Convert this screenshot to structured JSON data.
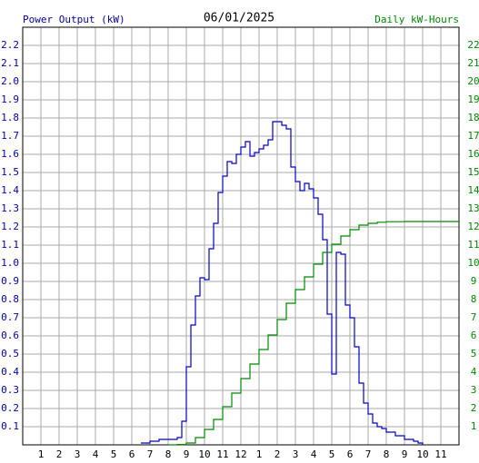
{
  "chart_data": {
    "type": "step",
    "title": "06/01/2025",
    "y_label": "Power Output (kW)",
    "y2_label": "Daily kW-Hours",
    "xlim": [
      0,
      24
    ],
    "xticks": [
      1,
      2,
      3,
      4,
      5,
      6,
      7,
      8,
      9,
      10,
      11,
      {
        "value": 12,
        "label": "12"
      },
      {
        "value": 13,
        "label": "1"
      },
      {
        "value": 14,
        "label": "2"
      },
      {
        "value": 15,
        "label": "3"
      },
      {
        "value": 16,
        "label": "4"
      },
      {
        "value": 17,
        "label": "5"
      },
      {
        "value": 18,
        "label": "6"
      },
      {
        "value": 19,
        "label": "7"
      },
      {
        "value": 20,
        "label": "8"
      },
      {
        "value": 21,
        "label": "9"
      },
      {
        "value": 22,
        "label": "10"
      },
      {
        "value": 23,
        "label": "11"
      }
    ],
    "ylim": [
      0,
      2.3
    ],
    "yticks": [
      0.1,
      0.2,
      0.3,
      0.4,
      0.5,
      0.6,
      0.7,
      0.8,
      0.9,
      {
        "value": 1,
        "label": "1.0"
      },
      1.1,
      1.2,
      1.3,
      1.4,
      1.5,
      1.6,
      1.7,
      1.8,
      1.9,
      {
        "value": 2,
        "label": "2.0"
      },
      2.1,
      2.2
    ],
    "y2lim": [
      0,
      23
    ],
    "y2ticks": [
      1,
      2,
      3,
      4,
      5,
      6,
      7,
      8,
      9,
      10,
      11,
      12,
      13,
      14,
      15,
      16,
      17,
      18,
      19,
      20,
      21,
      22
    ],
    "grid": true,
    "series": [
      {
        "name": "Power Output (kW)",
        "color": "#0000cc",
        "x": [
          6.5,
          7,
          7.5,
          8,
          8.5,
          8.75,
          9,
          9.25,
          9.5,
          9.75,
          10,
          10.25,
          10.5,
          10.75,
          11,
          11.25,
          11.5,
          11.75,
          12,
          12.25,
          12.5,
          12.75,
          13,
          13.25,
          13.5,
          13.75,
          14,
          14.25,
          14.5,
          14.75,
          15,
          15.25,
          15.5,
          15.75,
          16,
          16.25,
          16.5,
          16.75,
          17,
          17.25,
          17.5,
          17.75,
          18,
          18.25,
          18.5,
          18.75,
          19,
          19.25,
          19.5,
          19.75,
          20,
          20.5,
          21,
          21.5,
          21.75,
          22
        ],
        "values": [
          0.01,
          0.02,
          0.03,
          0.03,
          0.04,
          0.13,
          0.43,
          0.66,
          0.82,
          0.92,
          0.91,
          1.08,
          1.22,
          1.39,
          1.48,
          1.56,
          1.55,
          1.6,
          1.64,
          1.67,
          1.59,
          1.61,
          1.63,
          1.65,
          1.68,
          1.78,
          1.78,
          1.76,
          1.74,
          1.53,
          1.45,
          1.4,
          1.44,
          1.41,
          1.36,
          1.27,
          1.13,
          0.72,
          0.39,
          1.06,
          1.05,
          0.77,
          0.7,
          0.54,
          0.34,
          0.23,
          0.17,
          0.12,
          0.1,
          0.09,
          0.07,
          0.05,
          0.03,
          0.02,
          0.01,
          0
        ]
      },
      {
        "name": "Daily kW-Hours",
        "color": "#008800",
        "axis": "y2",
        "x": [
          8,
          8.5,
          9,
          9.5,
          10,
          10.5,
          11,
          11.5,
          12,
          12.5,
          13,
          13.5,
          14,
          14.5,
          15,
          15.5,
          16,
          16.5,
          17,
          17.5,
          18,
          18.5,
          19,
          19.5,
          20,
          21,
          24
        ],
        "values": [
          0,
          0.02,
          0.1,
          0.4,
          0.85,
          1.4,
          2.1,
          2.85,
          3.65,
          4.45,
          5.25,
          6.05,
          6.9,
          7.8,
          8.55,
          9.25,
          9.95,
          10.6,
          11.05,
          11.5,
          11.85,
          12.1,
          12.2,
          12.26,
          12.29,
          12.3,
          12.3
        ]
      }
    ]
  }
}
